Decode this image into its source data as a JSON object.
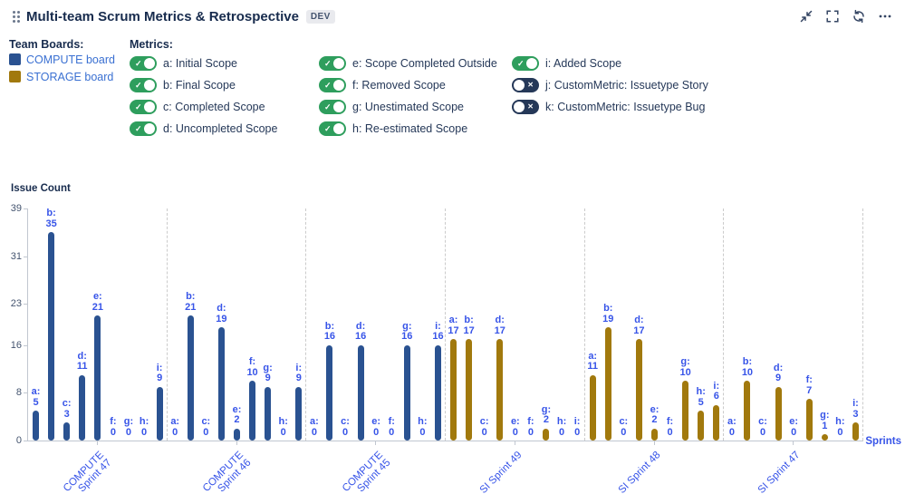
{
  "header": {
    "title": "Multi-team Scrum Metrics & Retrospective",
    "badge": "DEV",
    "icons": [
      "collapse",
      "fullscreen",
      "refresh",
      "more"
    ]
  },
  "team_boards": {
    "label": "Team Boards:",
    "items": [
      {
        "name": "COMPUTE board",
        "color": "#2A5291"
      },
      {
        "name": "STORAGE board",
        "color": "#A1790D"
      }
    ]
  },
  "metrics": {
    "label": "Metrics:",
    "columns": [
      [
        {
          "key": "a",
          "label": "a: Initial Scope",
          "enabled": true
        },
        {
          "key": "b",
          "label": "b: Final Scope",
          "enabled": true
        },
        {
          "key": "c",
          "label": "c: Completed Scope",
          "enabled": true
        },
        {
          "key": "d",
          "label": "d: Uncompleted Scope",
          "enabled": true
        }
      ],
      [
        {
          "key": "e",
          "label": "e: Scope Completed Outside",
          "enabled": true
        },
        {
          "key": "f",
          "label": "f: Removed Scope",
          "enabled": true
        },
        {
          "key": "g",
          "label": "g: Unestimated Scope",
          "enabled": true
        },
        {
          "key": "h",
          "label": "h: Re-estimated Scope",
          "enabled": true
        }
      ],
      [
        {
          "key": "i",
          "label": "i: Added Scope",
          "enabled": true
        },
        {
          "key": "j",
          "label": "j: CustomMetric: Issuetype Story",
          "enabled": false
        },
        {
          "key": "k",
          "label": "k: CustomMetric: Issuetype Bug",
          "enabled": false
        }
      ]
    ]
  },
  "chart_data": {
    "type": "bar",
    "title": "",
    "ylabel": "Issue Count",
    "xlabel": "Sprints",
    "ylim": [
      0,
      39
    ],
    "yticks": [
      0,
      8,
      16,
      23,
      31,
      39
    ],
    "grid": "dashed-vertical-group-separators",
    "metric_keys": [
      "a",
      "b",
      "c",
      "d",
      "e",
      "f",
      "g",
      "h",
      "i"
    ],
    "groups": [
      {
        "sprint": "COMPUTE Sprint 47",
        "label": "COMPUTE\nSprint 47",
        "board": "COMPUTE board",
        "color": "#2A5291",
        "values": {
          "a": 5,
          "b": 35,
          "c": 3,
          "d": 11,
          "e": 21,
          "f": 0,
          "g": 0,
          "h": 0,
          "i": 9
        }
      },
      {
        "sprint": "COMPUTE Sprint 46",
        "label": "COMPUTE\nSprint 46",
        "board": "COMPUTE board",
        "color": "#2A5291",
        "values": {
          "a": 0,
          "b": 21,
          "c": 0,
          "d": 19,
          "e": 2,
          "f": 10,
          "g": 9,
          "h": 0,
          "i": 9
        }
      },
      {
        "sprint": "COMPUTE Sprint 45",
        "label": "COMPUTE\nSprint 45",
        "board": "COMPUTE board",
        "color": "#2A5291",
        "values": {
          "a": 0,
          "b": 16,
          "c": 0,
          "d": 16,
          "e": 0,
          "f": 0,
          "g": 16,
          "h": 0,
          "i": 16
        }
      },
      {
        "sprint": "SI Sprint 49",
        "label": "SI Sprint 49",
        "board": "STORAGE board",
        "color": "#A1790D",
        "values": {
          "a": 17,
          "b": 17,
          "c": 0,
          "d": 17,
          "e": 0,
          "f": 0,
          "g": 2,
          "h": 0,
          "i": 0
        }
      },
      {
        "sprint": "SI Sprint 48",
        "label": "SI Sprint 48",
        "board": "STORAGE board",
        "color": "#A1790D",
        "values": {
          "a": 11,
          "b": 19,
          "c": 0,
          "d": 17,
          "e": 2,
          "f": 0,
          "g": 10,
          "h": 5,
          "i": 6
        }
      },
      {
        "sprint": "SI Sprint 47",
        "label": "SI Sprint 47",
        "board": "STORAGE board",
        "color": "#A1790D",
        "values": {
          "a": 0,
          "b": 10,
          "c": 0,
          "d": 9,
          "e": 0,
          "f": 7,
          "g": 1,
          "h": 0,
          "i": 3
        }
      }
    ]
  },
  "colors": {
    "compute_bar": "#2A5291",
    "storage_bar": "#A1790D",
    "value_label": "#3754E8",
    "board_link": "#3A70D2",
    "toggle_on": "#2E9E5D",
    "toggle_off": "#253858",
    "title_text": "#172B4D"
  }
}
